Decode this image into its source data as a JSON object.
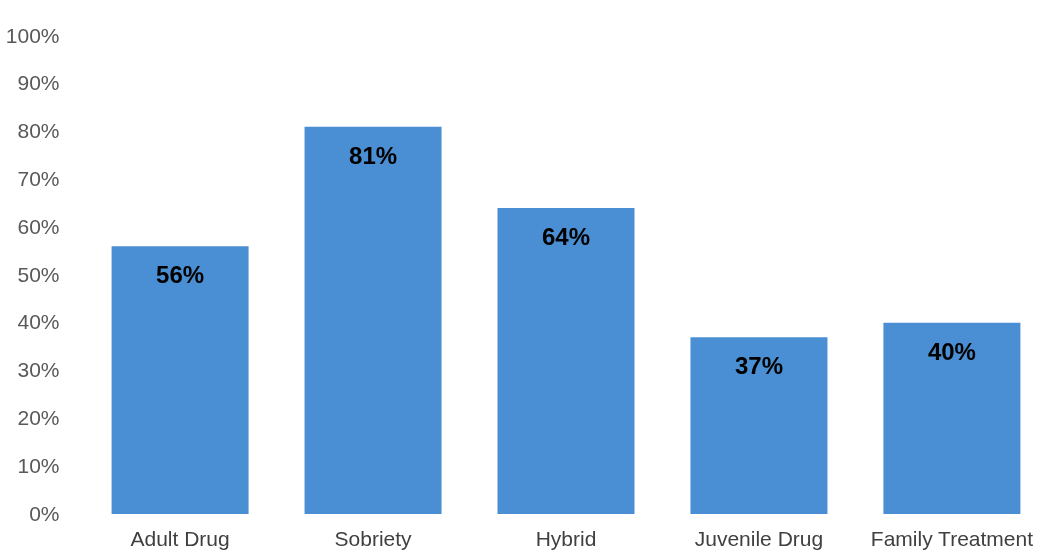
{
  "chart_data": {
    "type": "bar",
    "categories": [
      "Adult Drug",
      "Sobriety",
      "Hybrid",
      "Juvenile Drug",
      "Family Treatment"
    ],
    "values": [
      56,
      81,
      64,
      37,
      40
    ],
    "value_labels": [
      "56%",
      "81%",
      "64%",
      "37%",
      "40%"
    ],
    "color": "#4a8fd4",
    "ylim": [
      0,
      100
    ],
    "yticks": [
      {
        "value": 0,
        "label": "0%"
      },
      {
        "value": 10,
        "label": "10%"
      },
      {
        "value": 20,
        "label": "20%"
      },
      {
        "value": 30,
        "label": "30%"
      },
      {
        "value": 40,
        "label": "40%"
      },
      {
        "value": 50,
        "label": "50%"
      },
      {
        "value": 60,
        "label": "60%"
      },
      {
        "value": 70,
        "label": "70%"
      },
      {
        "value": 80,
        "label": "80%"
      },
      {
        "value": 90,
        "label": "90%"
      },
      {
        "value": 100,
        "label": "100%"
      }
    ],
    "grid": false
  }
}
